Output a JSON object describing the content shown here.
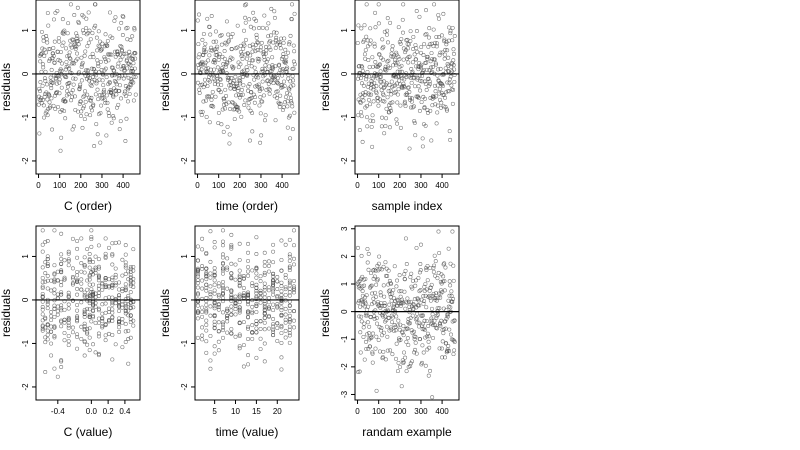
{
  "figure": {
    "background": "#ffffff",
    "point_color": "#444444"
  },
  "chart_data": [
    {
      "id": "c-order",
      "type": "scatter",
      "xlabel": "C (order)",
      "ylabel": "residuals",
      "xlim": [
        -12,
        480
      ],
      "ylim": [
        -2.3,
        1.7
      ],
      "xticks": [
        0,
        100,
        200,
        300,
        400
      ],
      "xticklabels": [
        "0",
        "100",
        "200",
        "300",
        "400"
      ],
      "yticks": [
        -2,
        -1,
        0,
        1
      ],
      "yticklabels": [
        "-2",
        "-1",
        "0",
        "1"
      ],
      "hline": 0,
      "n": 460,
      "x_values": "observation order 1..460",
      "y_summary": {
        "min": -2.2,
        "max": 1.6
      },
      "seed": 11
    },
    {
      "id": "time-order",
      "type": "scatter",
      "xlabel": "time (order)",
      "ylabel": "residuals",
      "xlim": [
        -12,
        480
      ],
      "ylim": [
        -2.3,
        1.7
      ],
      "xticks": [
        0,
        100,
        200,
        300,
        400
      ],
      "xticklabels": [
        "0",
        "100",
        "200",
        "300",
        "400"
      ],
      "yticks": [
        -2,
        -1,
        0,
        1
      ],
      "yticklabels": [
        "-2",
        "-1",
        "0",
        "1"
      ],
      "hline": 0,
      "n": 460,
      "x_values": "observation order 1..460",
      "y_summary": {
        "min": -2.2,
        "max": 1.6
      },
      "seed": 23
    },
    {
      "id": "sample-index",
      "type": "scatter",
      "xlabel": "sample index",
      "ylabel": "residuals",
      "xlim": [
        -12,
        480
      ],
      "ylim": [
        -2.3,
        1.7
      ],
      "xticks": [
        0,
        100,
        200,
        300,
        400
      ],
      "xticklabels": [
        "0",
        "100",
        "200",
        "300",
        "400"
      ],
      "yticks": [
        -2,
        -1,
        0,
        1
      ],
      "yticklabels": [
        "-2",
        "-1",
        "0",
        "1"
      ],
      "hline": 0,
      "n": 460,
      "x_values": "sample index 1..460",
      "y_summary": {
        "min": -2.2,
        "max": 1.6
      },
      "seed": 37
    },
    {
      "id": "c-value",
      "type": "scatter",
      "xlabel": "C (value)",
      "ylabel": "residuals",
      "xlim": [
        -0.66,
        0.58
      ],
      "ylim": [
        -2.3,
        1.7
      ],
      "xticks": [
        -0.4,
        0.0,
        0.2,
        0.4
      ],
      "xticklabels": [
        "-0.4",
        "0.0",
        "0.2",
        "0.4"
      ],
      "yticks": [
        -2,
        -1,
        0,
        1
      ],
      "yticklabels": [
        "-2",
        "-1",
        "0",
        "1"
      ],
      "hline": 0,
      "n": 460,
      "x_columns": [
        -0.58,
        -0.55,
        -0.52,
        -0.48,
        -0.44,
        -0.4,
        -0.36,
        -0.32,
        -0.27,
        -0.22,
        -0.17,
        -0.12,
        -0.08,
        -0.05,
        -0.02,
        0.0,
        0.02,
        0.05,
        0.09,
        0.13,
        0.17,
        0.21,
        0.25,
        0.29,
        0.33,
        0.37,
        0.41,
        0.44,
        0.47,
        0.5
      ],
      "y_summary": {
        "min": -2.2,
        "max": 1.6
      },
      "seed": 11
    },
    {
      "id": "time-value",
      "type": "scatter",
      "xlabel": "time (value)",
      "ylabel": "residuals",
      "xlim": [
        0.3,
        25.2
      ],
      "ylim": [
        -2.3,
        1.7
      ],
      "xticks": [
        5,
        10,
        15,
        20
      ],
      "xticklabels": [
        "5",
        "10",
        "15",
        "20"
      ],
      "yticks": [
        -2,
        -1,
        0,
        1
      ],
      "yticklabels": [
        "-2",
        "-1",
        "0",
        "1"
      ],
      "hline": 0,
      "n": 460,
      "x_columns": [
        1,
        2,
        3,
        4,
        5,
        6,
        7,
        8,
        9,
        10,
        11,
        12,
        13,
        14,
        15,
        16,
        17,
        18,
        19,
        20,
        21,
        22,
        23,
        24
      ],
      "y_summary": {
        "min": -2.2,
        "max": 1.6
      },
      "seed": 23
    },
    {
      "id": "random-example",
      "type": "scatter",
      "xlabel": "randam example",
      "ylabel": "residuals",
      "xlim": [
        -12,
        480
      ],
      "ylim": [
        -3.2,
        3.1
      ],
      "xticks": [
        0,
        100,
        200,
        300,
        400
      ],
      "xticklabels": [
        "0",
        "100",
        "200",
        "300",
        "400"
      ],
      "yticks": [
        -3,
        -2,
        -1,
        0,
        1,
        2,
        3
      ],
      "yticklabels": [
        "-3",
        "-2",
        "-1",
        "0",
        "1",
        "2",
        "3"
      ],
      "hline": 0,
      "n": 460,
      "x_values": "observation order 1..460",
      "y_summary": {
        "min": -3.1,
        "max": 2.9
      },
      "seed": 53
    }
  ]
}
